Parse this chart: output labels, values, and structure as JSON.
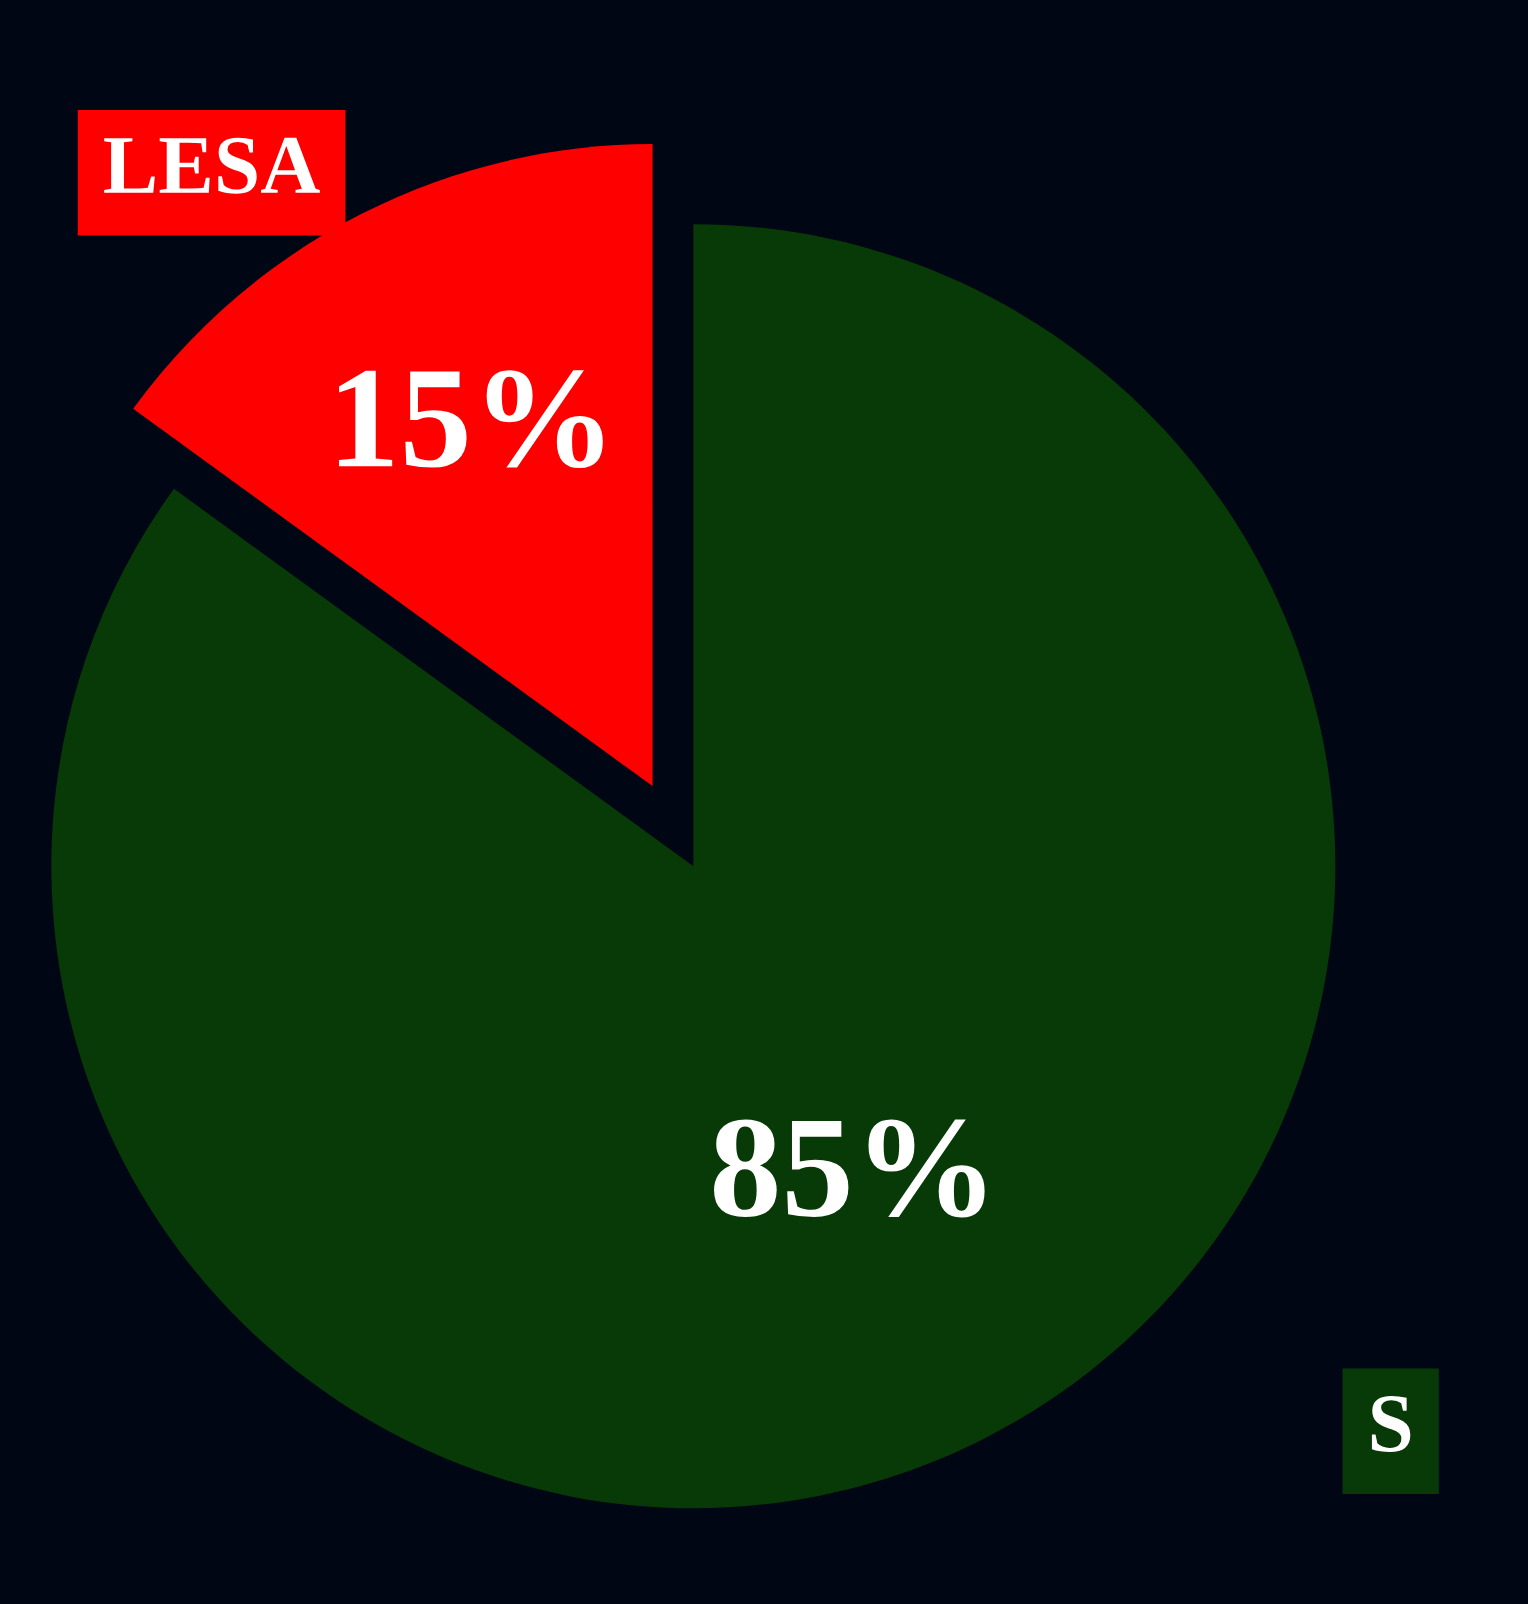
{
  "chart_data": {
    "type": "pie",
    "categories": [
      "S",
      "LESA"
    ],
    "values": [
      85,
      15
    ],
    "colors": [
      "#073a06",
      "#ff0000"
    ],
    "value_labels": [
      "85%",
      "15%"
    ]
  }
}
